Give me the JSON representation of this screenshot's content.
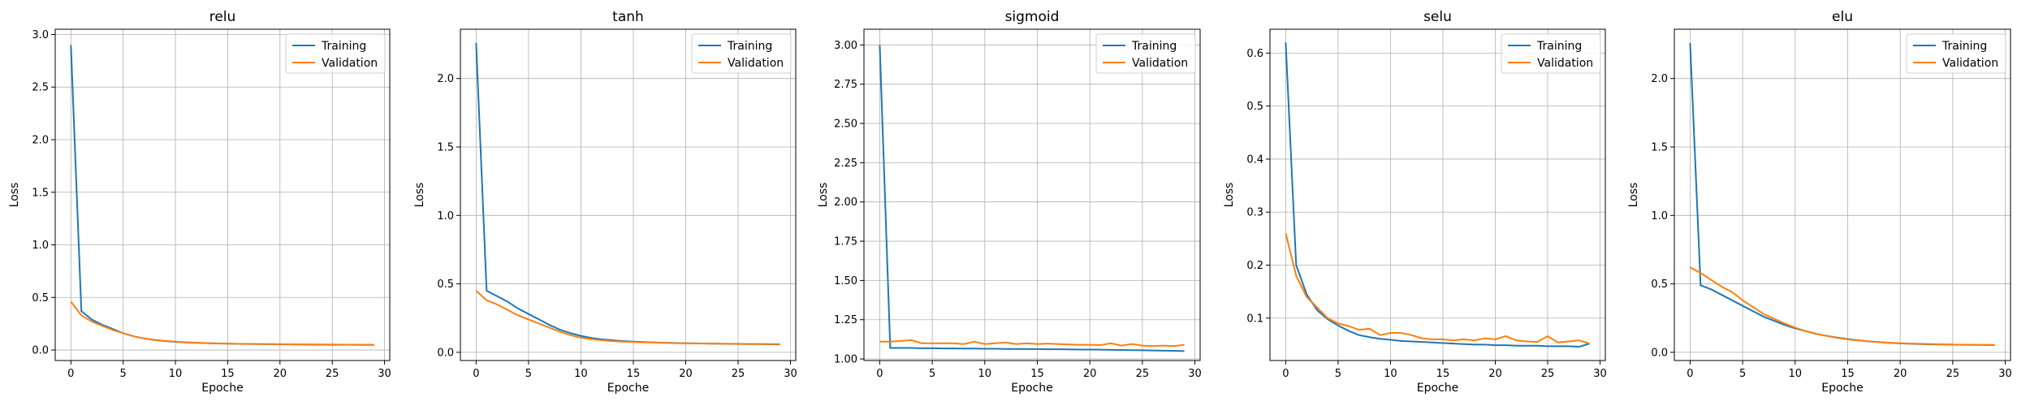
{
  "chart_data": [
    {
      "type": "line",
      "title": "relu",
      "xlabel": "Epoche",
      "ylabel": "Loss",
      "xlim": [
        -1.5,
        30.5
      ],
      "ylim": [
        -0.1,
        3.05
      ],
      "xticks": [
        0,
        5,
        10,
        15,
        20,
        25,
        30
      ],
      "yticks": [
        0.0,
        0.5,
        1.0,
        1.5,
        2.0,
        2.5,
        3.0
      ],
      "ytick_labels": [
        "0.0",
        "0.5",
        "1.0",
        "1.5",
        "2.0",
        "2.5",
        "3.0"
      ],
      "grid": true,
      "legend": "top-right",
      "series": [
        {
          "name": "Training",
          "color": "#1f77b4",
          "values": [
            2.9,
            0.37,
            0.29,
            0.24,
            0.2,
            0.16,
            0.13,
            0.11,
            0.095,
            0.085,
            0.078,
            0.072,
            0.068,
            0.065,
            0.062,
            0.06,
            0.058,
            0.057,
            0.056,
            0.055,
            0.054,
            0.053,
            0.052,
            0.051,
            0.051,
            0.05,
            0.05,
            0.05,
            0.049,
            0.049
          ]
        },
        {
          "name": "Validation",
          "color": "#ff7f0e",
          "values": [
            0.46,
            0.33,
            0.27,
            0.23,
            0.19,
            0.16,
            0.13,
            0.11,
            0.097,
            0.087,
            0.08,
            0.074,
            0.07,
            0.066,
            0.063,
            0.061,
            0.059,
            0.058,
            0.057,
            0.056,
            0.055,
            0.054,
            0.053,
            0.053,
            0.052,
            0.052,
            0.051,
            0.051,
            0.051,
            0.05
          ]
        }
      ]
    },
    {
      "type": "line",
      "title": "tanh",
      "xlabel": "Epoche",
      "ylabel": "Loss",
      "xlim": [
        -1.5,
        30.5
      ],
      "ylim": [
        -0.06,
        2.36
      ],
      "xticks": [
        0,
        5,
        10,
        15,
        20,
        25,
        30
      ],
      "yticks": [
        0.0,
        0.5,
        1.0,
        1.5,
        2.0
      ],
      "ytick_labels": [
        "0.0",
        "0.5",
        "1.0",
        "1.5",
        "2.0"
      ],
      "grid": true,
      "legend": "top-right",
      "series": [
        {
          "name": "Training",
          "color": "#1f77b4",
          "values": [
            2.26,
            0.45,
            0.41,
            0.37,
            0.32,
            0.28,
            0.24,
            0.2,
            0.165,
            0.14,
            0.12,
            0.105,
            0.095,
            0.088,
            0.082,
            0.078,
            0.075,
            0.072,
            0.07,
            0.068,
            0.066,
            0.065,
            0.064,
            0.063,
            0.062,
            0.061,
            0.06,
            0.06,
            0.059,
            0.058
          ]
        },
        {
          "name": "Validation",
          "color": "#ff7f0e",
          "values": [
            0.45,
            0.38,
            0.35,
            0.31,
            0.27,
            0.24,
            0.21,
            0.18,
            0.15,
            0.125,
            0.107,
            0.096,
            0.088,
            0.082,
            0.078,
            0.075,
            0.073,
            0.071,
            0.069,
            0.067,
            0.066,
            0.065,
            0.064,
            0.063,
            0.062,
            0.062,
            0.061,
            0.061,
            0.06,
            0.06
          ]
        }
      ]
    },
    {
      "type": "line",
      "title": "sigmoid",
      "xlabel": "Epoche",
      "ylabel": "Loss",
      "xlim": [
        -1.5,
        30.5
      ],
      "ylim": [
        0.99,
        3.1
      ],
      "xticks": [
        0,
        5,
        10,
        15,
        20,
        25,
        30
      ],
      "yticks": [
        1.0,
        1.25,
        1.5,
        1.75,
        2.0,
        2.25,
        2.5,
        2.75,
        3.0
      ],
      "ytick_labels": [
        "1.00",
        "1.25",
        "1.50",
        "1.75",
        "2.00",
        "2.25",
        "2.50",
        "2.75",
        "3.00"
      ],
      "grid": true,
      "legend": "top-right",
      "series": [
        {
          "name": "Training",
          "color": "#1f77b4",
          "values": [
            3.0,
            1.07,
            1.07,
            1.07,
            1.068,
            1.068,
            1.067,
            1.067,
            1.066,
            1.066,
            1.065,
            1.065,
            1.064,
            1.064,
            1.063,
            1.063,
            1.062,
            1.062,
            1.061,
            1.06,
            1.06,
            1.059,
            1.058,
            1.057,
            1.056,
            1.055,
            1.054,
            1.053,
            1.052,
            1.05
          ]
        },
        {
          "name": "Validation",
          "color": "#ff7f0e",
          "values": [
            1.11,
            1.11,
            1.115,
            1.12,
            1.1,
            1.1,
            1.1,
            1.1,
            1.095,
            1.11,
            1.095,
            1.1,
            1.105,
            1.095,
            1.1,
            1.095,
            1.098,
            1.095,
            1.092,
            1.09,
            1.09,
            1.088,
            1.1,
            1.085,
            1.095,
            1.085,
            1.082,
            1.085,
            1.082,
            1.09
          ]
        }
      ]
    },
    {
      "type": "line",
      "title": "selu",
      "xlabel": "Epoche",
      "ylabel": "Loss",
      "xlim": [
        -1.5,
        30.5
      ],
      "ylim": [
        0.02,
        0.645
      ],
      "xticks": [
        0,
        5,
        10,
        15,
        20,
        25,
        30
      ],
      "yticks": [
        0.1,
        0.2,
        0.3,
        0.4,
        0.5,
        0.6
      ],
      "ytick_labels": [
        "0.1",
        "0.2",
        "0.3",
        "0.4",
        "0.5",
        "0.6"
      ],
      "grid": true,
      "legend": "top-right",
      "series": [
        {
          "name": "Training",
          "color": "#1f77b4",
          "values": [
            0.62,
            0.2,
            0.145,
            0.115,
            0.098,
            0.086,
            0.076,
            0.068,
            0.064,
            0.061,
            0.059,
            0.057,
            0.056,
            0.055,
            0.054,
            0.053,
            0.052,
            0.051,
            0.05,
            0.05,
            0.049,
            0.049,
            0.048,
            0.048,
            0.048,
            0.047,
            0.047,
            0.047,
            0.046,
            0.052
          ]
        },
        {
          "name": "Validation",
          "color": "#ff7f0e",
          "values": [
            0.26,
            0.18,
            0.14,
            0.12,
            0.1,
            0.09,
            0.085,
            0.078,
            0.08,
            0.068,
            0.072,
            0.072,
            0.068,
            0.062,
            0.06,
            0.06,
            0.058,
            0.06,
            0.058,
            0.062,
            0.06,
            0.066,
            0.058,
            0.056,
            0.055,
            0.066,
            0.054,
            0.056,
            0.058,
            0.052
          ]
        }
      ]
    },
    {
      "type": "line",
      "title": "elu",
      "xlabel": "Epoche",
      "ylabel": "Loss",
      "xlim": [
        -1.5,
        30.5
      ],
      "ylim": [
        -0.06,
        2.36
      ],
      "xticks": [
        0,
        5,
        10,
        15,
        20,
        25,
        30
      ],
      "yticks": [
        0.0,
        0.5,
        1.0,
        1.5,
        2.0
      ],
      "ytick_labels": [
        "0.0",
        "0.5",
        "1.0",
        "1.5",
        "2.0"
      ],
      "grid": true,
      "legend": "top-right",
      "series": [
        {
          "name": "Training",
          "color": "#1f77b4",
          "values": [
            2.26,
            0.49,
            0.46,
            0.42,
            0.38,
            0.34,
            0.3,
            0.26,
            0.23,
            0.2,
            0.175,
            0.155,
            0.135,
            0.12,
            0.108,
            0.097,
            0.088,
            0.08,
            0.074,
            0.069,
            0.065,
            0.062,
            0.06,
            0.058,
            0.057,
            0.056,
            0.055,
            0.054,
            0.054,
            0.053
          ]
        },
        {
          "name": "Validation",
          "color": "#ff7f0e",
          "values": [
            0.62,
            0.58,
            0.53,
            0.48,
            0.44,
            0.38,
            0.33,
            0.28,
            0.245,
            0.21,
            0.18,
            0.155,
            0.135,
            0.12,
            0.105,
            0.095,
            0.087,
            0.08,
            0.075,
            0.07,
            0.067,
            0.064,
            0.062,
            0.06,
            0.058,
            0.057,
            0.056,
            0.055,
            0.054,
            0.054
          ]
        }
      ]
    }
  ]
}
